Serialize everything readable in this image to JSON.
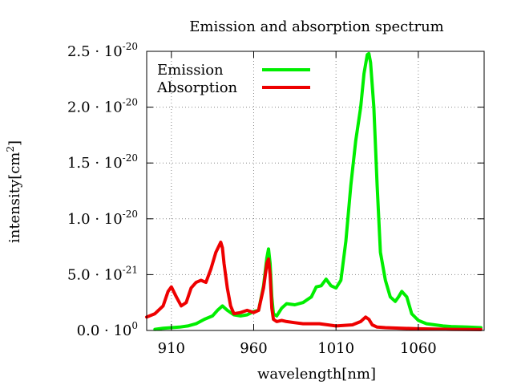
{
  "chart_data": {
    "type": "line",
    "title": "Emission and absorption spectrum",
    "xlabel": "wavelength[nm]",
    "ylabel": {
      "text": "intensity[cm",
      "sup": "2",
      "close": "]"
    },
    "xlim": [
      895,
      1100
    ],
    "ylim": [
      0,
      2.5e-20
    ],
    "grid": true,
    "legend_position": "top-left",
    "x_ticks": [
      {
        "value": 910,
        "label": "910"
      },
      {
        "value": 960,
        "label": "960"
      },
      {
        "value": 1010,
        "label": "1010"
      },
      {
        "value": 1060,
        "label": "1060"
      }
    ],
    "y_ticks": [
      {
        "value": 0,
        "mantissa": "0.0 · 10",
        "exp": "0"
      },
      {
        "value": 5e-21,
        "mantissa": "5.0 · 10",
        "exp": "-21"
      },
      {
        "value": 1e-20,
        "mantissa": "1.0 · 10",
        "exp": "-20"
      },
      {
        "value": 1.5e-20,
        "mantissa": "1.5 · 10",
        "exp": "-20"
      },
      {
        "value": 2e-20,
        "mantissa": "2.0 · 10",
        "exp": "-20"
      },
      {
        "value": 2.5e-20,
        "mantissa": "2.5 · 10",
        "exp": "-20"
      }
    ],
    "series": [
      {
        "name": "Emission",
        "color": "#00ee00",
        "x": [
          900,
          905,
          910,
          915,
          920,
          925,
          930,
          935,
          938,
          941,
          944,
          948,
          952,
          956,
          960,
          963,
          966,
          968,
          969,
          970,
          971,
          972,
          974,
          977,
          980,
          985,
          990,
          995,
          998,
          1001,
          1004,
          1007,
          1010,
          1013,
          1016,
          1019,
          1022,
          1025,
          1027,
          1029,
          1030,
          1031,
          1033,
          1035,
          1037,
          1040,
          1043,
          1046,
          1048,
          1050,
          1053,
          1056,
          1060,
          1065,
          1070,
          1075,
          1080,
          1090,
          1098
        ],
        "y": [
          1e-22,
          2e-22,
          2.5e-22,
          3e-22,
          4e-22,
          6e-22,
          1e-21,
          1.3e-21,
          1.8e-21,
          2.2e-21,
          1.8e-21,
          1.4e-21,
          1.3e-21,
          1.4e-21,
          1.7e-21,
          1.8e-21,
          4e-21,
          6.5e-21,
          7.3e-21,
          6e-21,
          3e-21,
          1.5e-21,
          1.3e-21,
          2e-21,
          2.4e-21,
          2.3e-21,
          2.5e-21,
          3e-21,
          3.9e-21,
          4e-21,
          4.6e-21,
          4e-21,
          3.8e-21,
          4.5e-21,
          8e-21,
          1.3e-20,
          1.7e-20,
          2e-20,
          2.3e-20,
          2.47e-20,
          2.48e-20,
          2.4e-20,
          2e-20,
          1.3e-20,
          7e-21,
          4.5e-21,
          3e-21,
          2.6e-21,
          3e-21,
          3.5e-21,
          3e-21,
          1.5e-21,
          9e-22,
          6e-22,
          5e-22,
          4e-22,
          3.5e-22,
          3e-22,
          2.5e-22
        ]
      },
      {
        "name": "Absorption",
        "color": "#ee0000",
        "x": [
          895,
          900,
          905,
          908,
          910,
          913,
          916,
          919,
          922,
          925,
          928,
          931,
          934,
          937,
          940,
          941,
          942,
          944,
          946,
          948,
          952,
          956,
          960,
          963,
          966,
          968,
          969,
          970,
          971,
          972,
          974,
          977,
          980,
          985,
          990,
          1000,
          1010,
          1020,
          1025,
          1028,
          1030,
          1032,
          1035,
          1040,
          1050,
          1060,
          1070,
          1080,
          1090,
          1098
        ],
        "y": [
          1.2e-21,
          1.5e-21,
          2.2e-21,
          3.5e-21,
          3.9e-21,
          3e-21,
          2.2e-21,
          2.5e-21,
          3.8e-21,
          4.3e-21,
          4.5e-21,
          4.3e-21,
          5.5e-21,
          7e-21,
          7.9e-21,
          7.4e-21,
          6e-21,
          3.8e-21,
          2.2e-21,
          1.5e-21,
          1.6e-21,
          1.8e-21,
          1.6e-21,
          1.8e-21,
          3.8e-21,
          6e-21,
          6.4e-21,
          5e-21,
          2e-21,
          1e-21,
          8e-22,
          9e-22,
          8e-22,
          7e-22,
          6e-22,
          6e-22,
          4e-22,
          5e-22,
          8e-22,
          1.2e-21,
          1e-21,
          5e-22,
          3e-22,
          2.5e-22,
          2e-22,
          1.5e-22,
          1.2e-22,
          1e-22,
          9e-23,
          8e-23
        ]
      }
    ]
  }
}
